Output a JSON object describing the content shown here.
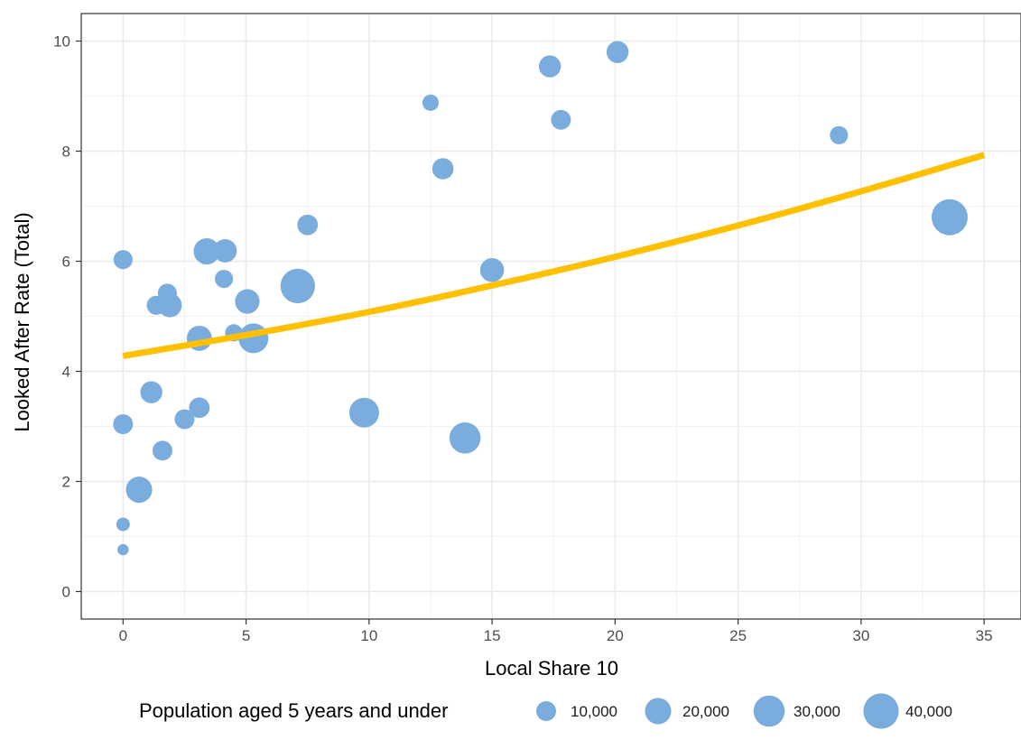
{
  "chart_data": {
    "type": "scatter",
    "title": "",
    "xlabel": "Local Share 10",
    "ylabel": "Looked After Rate (Total)",
    "xlim": [
      -1.7,
      36.5
    ],
    "ylim": [
      -0.5,
      10.5
    ],
    "x_ticks": [
      0,
      5,
      10,
      15,
      20,
      25,
      30,
      35
    ],
    "y_ticks": [
      0,
      2,
      4,
      6,
      8,
      10
    ],
    "x_tick_labels": [
      "0",
      "5",
      "10",
      "15",
      "20",
      "25",
      "30",
      "35"
    ],
    "y_tick_labels": [
      "0",
      "2",
      "4",
      "6",
      "8",
      "10"
    ],
    "grid": true,
    "point_color": "#7aacdd",
    "trend_color": "#ffc000",
    "points": [
      {
        "x": 0.0,
        "y": 6.03,
        "size": 9000
      },
      {
        "x": 0.0,
        "y": 3.04,
        "size": 10000
      },
      {
        "x": 0.0,
        "y": 1.22,
        "size": 3500
      },
      {
        "x": 0.0,
        "y": 0.76,
        "size": 2000
      },
      {
        "x": 0.65,
        "y": 1.85,
        "size": 20000
      },
      {
        "x": 1.15,
        "y": 3.62,
        "size": 13000
      },
      {
        "x": 1.35,
        "y": 5.2,
        "size": 9000
      },
      {
        "x": 1.6,
        "y": 2.56,
        "size": 10000
      },
      {
        "x": 1.8,
        "y": 5.42,
        "size": 9000
      },
      {
        "x": 1.9,
        "y": 5.2,
        "size": 16000
      },
      {
        "x": 2.5,
        "y": 3.13,
        "size": 10000
      },
      {
        "x": 3.1,
        "y": 4.6,
        "size": 18000
      },
      {
        "x": 3.1,
        "y": 3.34,
        "size": 11000
      },
      {
        "x": 3.4,
        "y": 6.18,
        "size": 20000
      },
      {
        "x": 4.1,
        "y": 5.68,
        "size": 8000
      },
      {
        "x": 4.15,
        "y": 6.19,
        "size": 15000
      },
      {
        "x": 4.5,
        "y": 4.7,
        "size": 7000
      },
      {
        "x": 5.05,
        "y": 5.27,
        "size": 17000
      },
      {
        "x": 5.3,
        "y": 4.6,
        "size": 27000
      },
      {
        "x": 7.1,
        "y": 5.55,
        "size": 38000
      },
      {
        "x": 7.5,
        "y": 6.66,
        "size": 11000
      },
      {
        "x": 9.8,
        "y": 3.25,
        "size": 27000
      },
      {
        "x": 12.5,
        "y": 8.88,
        "size": 6000
      },
      {
        "x": 13.0,
        "y": 7.68,
        "size": 12000
      },
      {
        "x": 13.9,
        "y": 2.79,
        "size": 30000
      },
      {
        "x": 15.0,
        "y": 5.84,
        "size": 16000
      },
      {
        "x": 17.35,
        "y": 9.54,
        "size": 13000
      },
      {
        "x": 17.8,
        "y": 8.57,
        "size": 10000
      },
      {
        "x": 20.1,
        "y": 9.8,
        "size": 13000
      },
      {
        "x": 29.1,
        "y": 8.29,
        "size": 8000
      },
      {
        "x": 33.6,
        "y": 6.8,
        "size": 42000
      }
    ],
    "trend": {
      "x": [
        0,
        5,
        10,
        15,
        20,
        25,
        30,
        35
      ],
      "y": [
        4.28,
        4.66,
        5.08,
        5.56,
        6.08,
        6.65,
        7.27,
        7.93
      ]
    },
    "legend": {
      "title": "Population aged 5 years and under",
      "position": "bottom",
      "values": [
        10000,
        20000,
        30000,
        40000
      ],
      "labels": [
        "10,000",
        "20,000",
        "30,000",
        "40,000"
      ]
    }
  }
}
